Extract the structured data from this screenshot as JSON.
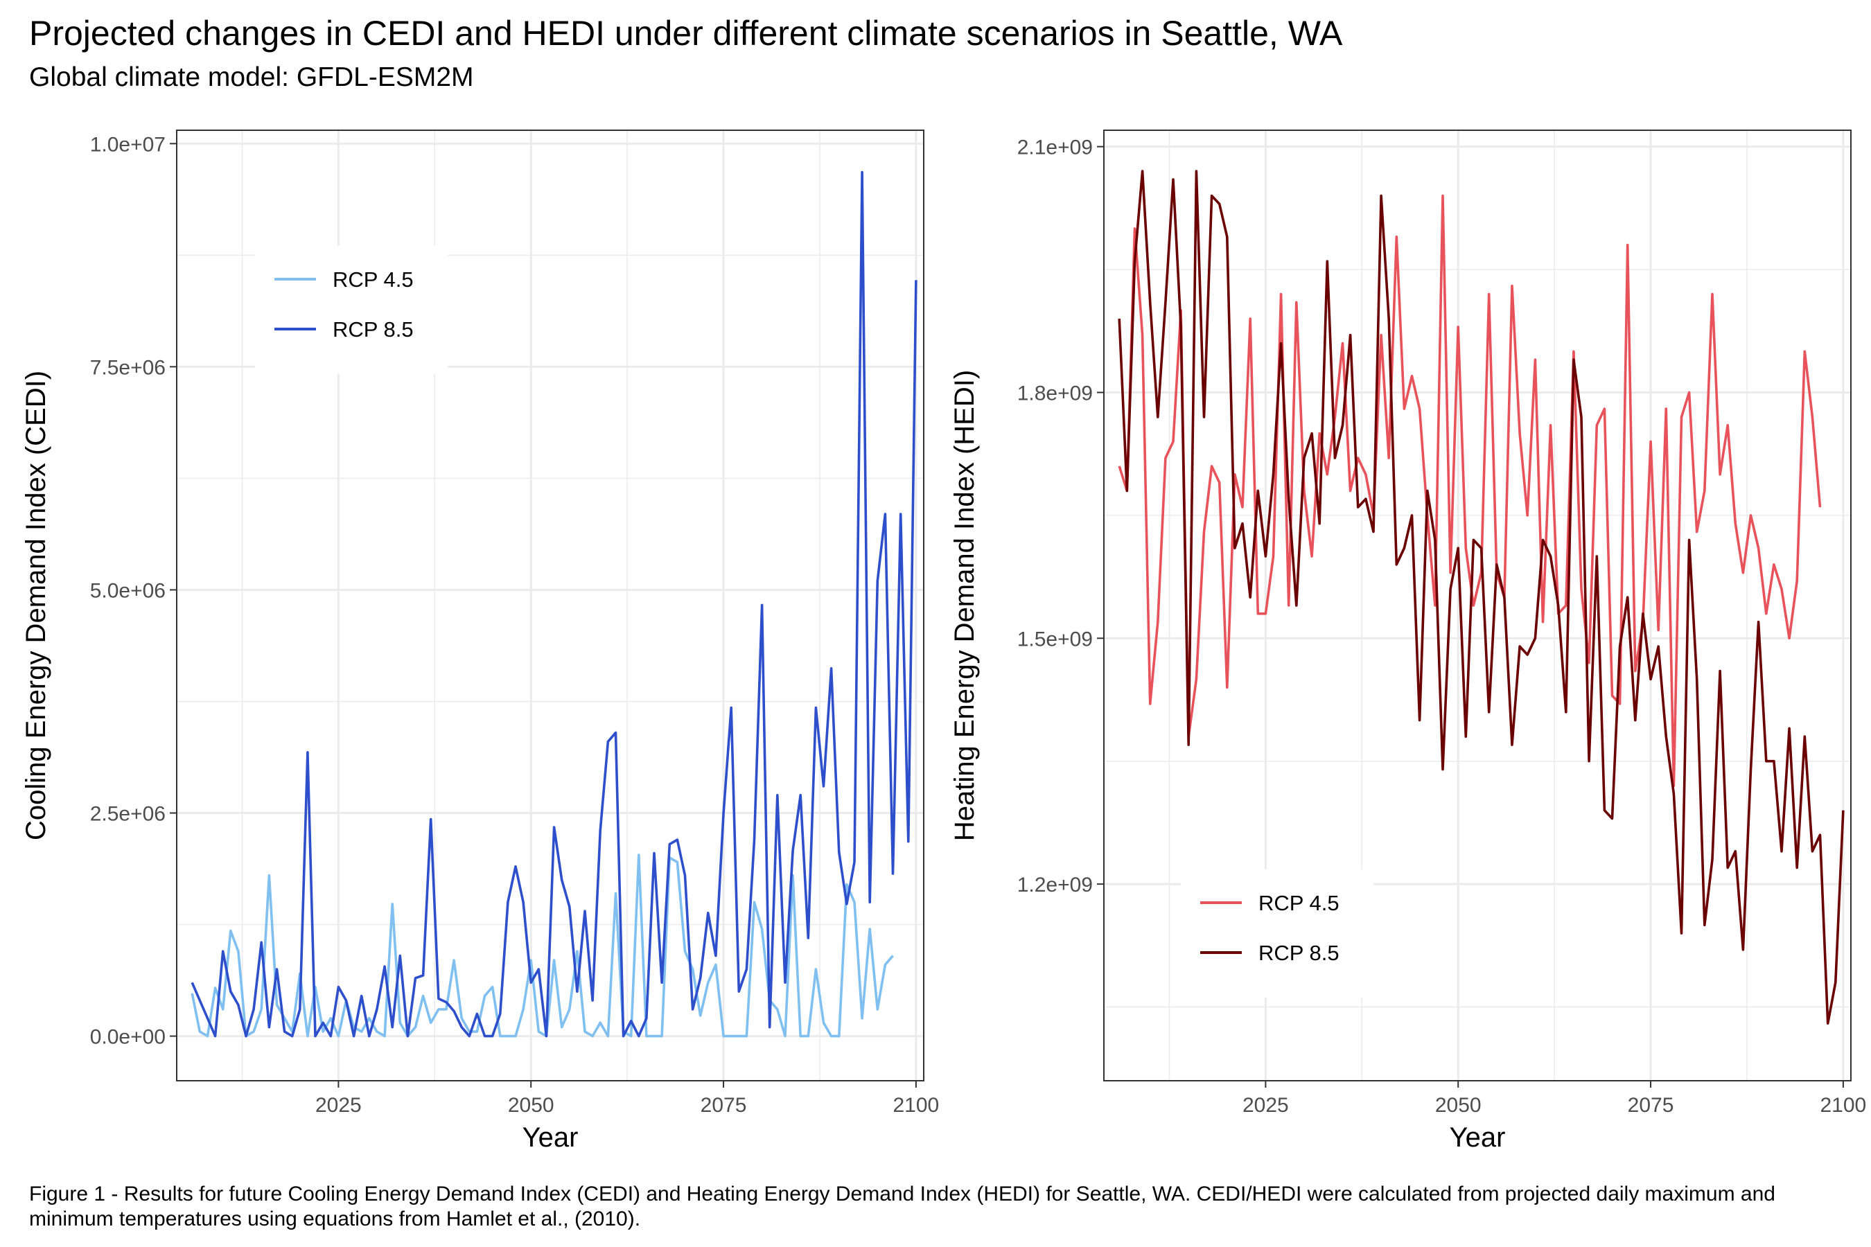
{
  "title": "Projected changes in CEDI and HEDI under different climate scenarios in Seattle, WA",
  "subtitle": "Global climate model: GFDL-ESM2M",
  "caption": "Figure 1 - Results for future Cooling Energy Demand Index (CEDI) and Heating Energy Demand Index (HEDI) for Seattle, WA. CEDI/HEDI were calculated from projected daily maximum and minimum temperatures using equations from Hamlet et al., (2010).",
  "colors": {
    "cedi_rcp45": "#7fc0f0",
    "cedi_rcp85": "#2d4fcc",
    "hedi_rcp45": "#e8525b",
    "hedi_rcp85": "#6b0000",
    "grid": "#ebebeb",
    "border": "#333333"
  },
  "chart_data": [
    {
      "type": "line",
      "xlabel": "Year",
      "ylabel": "Cooling Energy Demand Index (CEDI)",
      "xlim": [
        2004,
        2101
      ],
      "ylim": [
        -500000,
        10150000
      ],
      "xticks": [
        2025,
        2050,
        2075,
        2100
      ],
      "xtick_labels": [
        "2025",
        "2050",
        "2075",
        "2100"
      ],
      "yticks": [
        0,
        2500000,
        5000000,
        7500000,
        10000000
      ],
      "ytick_labels": [
        "0.0e+00",
        "2.5e+06",
        "5.0e+06",
        "7.5e+06",
        "1.0e+07"
      ],
      "legend_position": "top-left",
      "grid": true,
      "x_start": 2006,
      "series": [
        {
          "name": "RCP 4.5",
          "color": "#7fc0f0",
          "values": [
            480000,
            50000,
            0,
            540000,
            300000,
            1180000,
            950000,
            0,
            50000,
            300000,
            1800000,
            350000,
            200000,
            50000,
            700000,
            0,
            550000,
            50000,
            200000,
            0,
            400000,
            100000,
            50000,
            200000,
            50000,
            0,
            1480000,
            150000,
            0,
            100000,
            450000,
            150000,
            300000,
            300000,
            850000,
            200000,
            50000,
            50000,
            450000,
            550000,
            0,
            0,
            0,
            300000,
            850000,
            50000,
            0,
            850000,
            100000,
            300000,
            950000,
            50000,
            0,
            150000,
            0,
            1600000,
            50000,
            0,
            2030000,
            0,
            0,
            0,
            2000000,
            1950000,
            950000,
            750000,
            230000,
            600000,
            800000,
            0,
            0,
            0,
            0,
            1500000,
            1200000,
            400000,
            300000,
            0,
            1800000,
            0,
            0,
            750000,
            150000,
            0,
            0,
            1700000,
            1500000,
            200000,
            1200000,
            300000,
            800000,
            900000
          ]
        },
        {
          "name": "RCP 8.5",
          "color": "#2d4fcc",
          "values": [
            600000,
            400000,
            200000,
            0,
            950000,
            500000,
            350000,
            0,
            300000,
            1050000,
            100000,
            750000,
            50000,
            0,
            300000,
            3180000,
            0,
            150000,
            0,
            550000,
            400000,
            0,
            450000,
            0,
            300000,
            780000,
            100000,
            900000,
            0,
            650000,
            680000,
            2430000,
            420000,
            380000,
            280000,
            100000,
            0,
            250000,
            0,
            0,
            250000,
            1500000,
            1900000,
            1500000,
            600000,
            750000,
            0,
            2340000,
            1750000,
            1450000,
            500000,
            1400000,
            400000,
            2300000,
            3300000,
            3400000,
            0,
            170000,
            0,
            200000,
            2050000,
            600000,
            2150000,
            2200000,
            1800000,
            300000,
            650000,
            1380000,
            900000,
            2500000,
            3680000,
            500000,
            750000,
            2200000,
            4830000,
            100000,
            2700000,
            600000,
            2080000,
            2700000,
            1100000,
            3680000,
            2800000,
            4120000,
            2060000,
            1480000,
            1950000,
            9680000,
            1500000,
            5100000,
            5850000,
            1820000,
            5850000,
            2180000,
            8470000
          ]
        }
      ]
    },
    {
      "type": "line",
      "xlabel": "Year",
      "ylabel": "Heating Energy Demand Index (HEDI)",
      "xlim": [
        2004,
        2101
      ],
      "ylim": [
        960000000,
        2120000000
      ],
      "xticks": [
        2025,
        2050,
        2075,
        2100
      ],
      "xtick_labels": [
        "2025",
        "2050",
        "2075",
        "2100"
      ],
      "yticks": [
        1200000000,
        1500000000,
        1800000000,
        2100000000
      ],
      "ytick_labels": [
        "1.2e+09",
        "1.5e+09",
        "1.8e+09",
        "2.1e+09"
      ],
      "legend_position": "bottom-left",
      "grid": true,
      "x_start": 2006,
      "series": [
        {
          "name": "RCP 4.5",
          "color": "#e8525b",
          "values": [
            1710000000,
            1680000000,
            2000000000,
            1870000000,
            1420000000,
            1520000000,
            1720000000,
            1740000000,
            1900000000,
            1380000000,
            1450000000,
            1630000000,
            1710000000,
            1690000000,
            1440000000,
            1700000000,
            1660000000,
            1890000000,
            1530000000,
            1530000000,
            1600000000,
            1920000000,
            1540000000,
            1910000000,
            1680000000,
            1600000000,
            1750000000,
            1700000000,
            1770000000,
            1860000000,
            1680000000,
            1720000000,
            1700000000,
            1650000000,
            1870000000,
            1720000000,
            1990000000,
            1780000000,
            1820000000,
            1780000000,
            1650000000,
            1540000000,
            2040000000,
            1580000000,
            1880000000,
            1610000000,
            1540000000,
            1580000000,
            1920000000,
            1580000000,
            1550000000,
            1930000000,
            1750000000,
            1650000000,
            1840000000,
            1520000000,
            1760000000,
            1530000000,
            1540000000,
            1850000000,
            1560000000,
            1470000000,
            1760000000,
            1780000000,
            1430000000,
            1420000000,
            1980000000,
            1460000000,
            1520000000,
            1740000000,
            1510000000,
            1780000000,
            1320000000,
            1770000000,
            1800000000,
            1630000000,
            1680000000,
            1920000000,
            1700000000,
            1760000000,
            1640000000,
            1580000000,
            1650000000,
            1610000000,
            1530000000,
            1590000000,
            1560000000,
            1500000000,
            1570000000,
            1850000000,
            1770000000,
            1660000000
          ]
        },
        {
          "name": "RCP 8.5",
          "color": "#6b0000",
          "values": [
            1890000000,
            1680000000,
            1960000000,
            2070000000,
            1910000000,
            1770000000,
            1910000000,
            2060000000,
            1880000000,
            1370000000,
            2070000000,
            1770000000,
            2040000000,
            2030000000,
            1990000000,
            1610000000,
            1640000000,
            1550000000,
            1680000000,
            1600000000,
            1700000000,
            1860000000,
            1670000000,
            1540000000,
            1720000000,
            1750000000,
            1640000000,
            1960000000,
            1720000000,
            1760000000,
            1870000000,
            1660000000,
            1670000000,
            1630000000,
            2040000000,
            1890000000,
            1590000000,
            1610000000,
            1650000000,
            1400000000,
            1680000000,
            1620000000,
            1340000000,
            1560000000,
            1610000000,
            1380000000,
            1620000000,
            1610000000,
            1410000000,
            1590000000,
            1550000000,
            1370000000,
            1490000000,
            1480000000,
            1500000000,
            1620000000,
            1600000000,
            1540000000,
            1410000000,
            1840000000,
            1770000000,
            1350000000,
            1600000000,
            1290000000,
            1280000000,
            1490000000,
            1550000000,
            1400000000,
            1530000000,
            1450000000,
            1490000000,
            1380000000,
            1310000000,
            1140000000,
            1620000000,
            1450000000,
            1150000000,
            1230000000,
            1460000000,
            1220000000,
            1240000000,
            1120000000,
            1340000000,
            1520000000,
            1350000000,
            1350000000,
            1240000000,
            1390000000,
            1220000000,
            1380000000,
            1240000000,
            1260000000,
            1030000000,
            1080000000,
            1290000000
          ]
        }
      ]
    }
  ]
}
